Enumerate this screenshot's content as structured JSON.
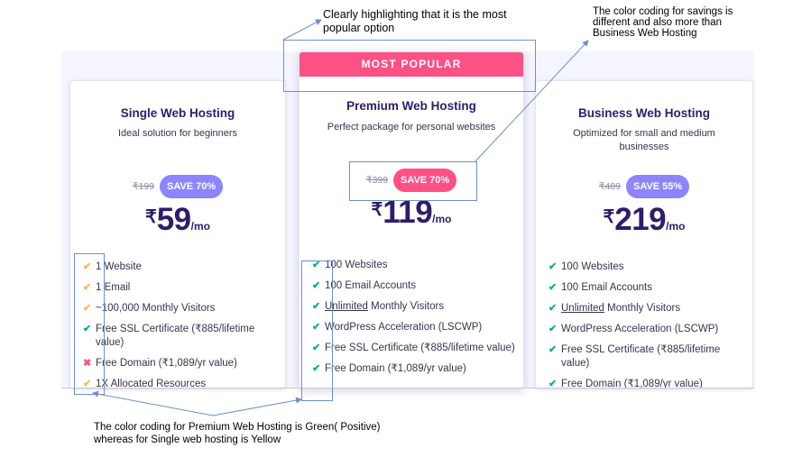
{
  "plans": [
    {
      "title": "Single Web Hosting",
      "subtitle": "Ideal solution for beginners",
      "old_price": "₹199",
      "save": "SAVE 70%",
      "currency": "₹",
      "price": "59",
      "per": "/mo",
      "features": [
        {
          "icon": "check",
          "color": "#ffb24a",
          "text": "1 Website"
        },
        {
          "icon": "check",
          "color": "#ffb24a",
          "text": "1 Email"
        },
        {
          "icon": "check",
          "color": "#ffb24a",
          "text": "~100,000 Monthly Visitors"
        },
        {
          "icon": "check",
          "color": "#00b090",
          "text": "Free SSL Certificate (₹885/lifetime value)"
        },
        {
          "icon": "cross",
          "color": "#fc5185",
          "text": "Free Domain (₹1,089/yr value)"
        },
        {
          "icon": "check",
          "color": "#ffb24a",
          "text": "1X Allocated Resources"
        }
      ]
    },
    {
      "banner": "MOST POPULAR",
      "title": "Premium Web Hosting",
      "subtitle": "Perfect package for personal websites",
      "old_price": "₹399",
      "save": "SAVE 70%",
      "currency": "₹",
      "price": "119",
      "per": "/mo",
      "features": [
        {
          "icon": "check",
          "color": "#00b090",
          "text": "100 Websites"
        },
        {
          "icon": "check",
          "color": "#00b090",
          "text": "100 Email Accounts"
        },
        {
          "icon": "check",
          "color": "#00b090",
          "text_underlined": "Unlimited",
          "text": " Monthly Visitors"
        },
        {
          "icon": "check",
          "color": "#00b090",
          "text": "WordPress Acceleration (LSCWP)"
        },
        {
          "icon": "check",
          "color": "#00b090",
          "text": "Free SSL Certificate (₹885/lifetime value)"
        },
        {
          "icon": "check",
          "color": "#00b090",
          "text": "Free Domain (₹1,089/yr value)"
        }
      ]
    },
    {
      "title": "Business Web Hosting",
      "subtitle": "Optimized for small and medium businesses",
      "old_price": "₹489",
      "save": "SAVE 55%",
      "currency": "₹",
      "price": "219",
      "per": "/mo",
      "features": [
        {
          "icon": "check",
          "color": "#00b090",
          "text": "100 Websites"
        },
        {
          "icon": "check",
          "color": "#00b090",
          "text": "100 Email Accounts"
        },
        {
          "icon": "check",
          "color": "#00b090",
          "text_underlined": "Unlimited",
          "text": " Monthly Visitors"
        },
        {
          "icon": "check",
          "color": "#00b090",
          "text": "WordPress Acceleration (LSCWP)"
        },
        {
          "icon": "check",
          "color": "#00b090",
          "text": "Free SSL Certificate (₹885/lifetime value)"
        },
        {
          "icon": "check",
          "color": "#00b090",
          "text": "Free Domain (₹1,089/yr value)"
        }
      ]
    }
  ],
  "annotations": {
    "popular": "Clearly highlighting that it is the most popular option",
    "savings": "The color coding for savings is different and also more than Business Web Hosting",
    "color_coding": "The color coding for Premium Web Hosting is Green( Positive) whereas for Single web hosting is Yellow"
  },
  "colors": {
    "accent_pink": "#fc5185",
    "accent_purple": "#8c85ff",
    "positive_green": "#00b090",
    "caution_yellow": "#ffb24a",
    "heading_navy": "#2f1c6a",
    "annotation_blue": "#6f8fc9"
  }
}
